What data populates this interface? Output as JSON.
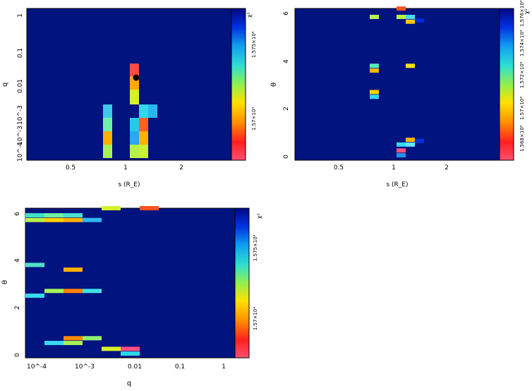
{
  "chart_data": [
    {
      "type": "heatmap",
      "title": "",
      "xlabel": "s (R_E)",
      "ylabel": "q",
      "x_ticks": [
        "0.5",
        "1",
        "2"
      ],
      "y_ticks": [
        "1",
        "0.1",
        "0.01",
        "10^-3",
        "10^-3",
        "10^-4"
      ],
      "colorbar_label": "χ²",
      "colorbar_ticks": [
        "1.575×10⁴",
        "1.57×10⁴"
      ],
      "background_color": "#00137f",
      "best_fit_marker": {
        "s": 1.1,
        "q": 0.015
      },
      "cells": [
        {
          "s_bin": 0.8,
          "q_bin": "3e-3",
          "color": "#3fc9e8"
        },
        {
          "s_bin": 0.8,
          "q_bin": "1e-3",
          "color": "#70f0a8"
        },
        {
          "s_bin": 0.8,
          "q_bin": "6e-4",
          "color": "#ffb000"
        },
        {
          "s_bin": 0.8,
          "q_bin": "3e-4",
          "color": "#b8f050"
        },
        {
          "s_bin": 0.8,
          "q_bin": "1e-4",
          "color": "#a8f058"
        },
        {
          "s_bin": 1.1,
          "q_bin": "0.03",
          "color": "#ff4a4a"
        },
        {
          "s_bin": 1.1,
          "q_bin": "0.01",
          "color": "#ffa800"
        },
        {
          "s_bin": 1.1,
          "q_bin": "5e-3",
          "color": "#d8f028"
        },
        {
          "s_bin": 1.1,
          "q_bin": "1e-3",
          "color": "#28c8e8"
        },
        {
          "s_bin": 1.1,
          "q_bin": "6e-4",
          "color": "#28a8f0"
        },
        {
          "s_bin": 1.1,
          "q_bin": "3e-4",
          "color": "#a8f058"
        },
        {
          "s_bin": 1.1,
          "q_bin": "1e-4",
          "color": "#b8f048"
        },
        {
          "s_bin": 1.3,
          "q_bin": "3e-3",
          "color": "#30d8e8"
        },
        {
          "s_bin": 1.3,
          "q_bin": "1e-3",
          "color": "#ff6020"
        },
        {
          "s_bin": 1.3,
          "q_bin": "6e-4",
          "color": "#ffb000"
        },
        {
          "s_bin": 1.3,
          "q_bin": "3e-4",
          "color": "#c8f038"
        },
        {
          "s_bin": 1.5,
          "q_bin": "3e-3",
          "color": "#28b8f0"
        }
      ]
    },
    {
      "type": "heatmap",
      "title": "",
      "xlabel": "s (R_E)",
      "ylabel": "θ",
      "x_ticks": [
        "0.5",
        "1",
        "2"
      ],
      "y_ticks": [
        "0",
        "2",
        "4",
        "6"
      ],
      "colorbar_label": "χ²",
      "colorbar_ticks": [
        "1.568×10⁴",
        "1.57×10⁴",
        "1.572×10⁴",
        "1.574×10⁴",
        "1.576×10⁴"
      ],
      "background_color": "#00137f",
      "cells": [
        {
          "s_bin": 0.8,
          "theta": 5.8,
          "color": "#b8f048"
        },
        {
          "s_bin": 0.8,
          "theta": 3.75,
          "color": "#50f0c0"
        },
        {
          "s_bin": 0.8,
          "theta": 3.55,
          "color": "#ffb000"
        },
        {
          "s_bin": 0.8,
          "theta": 2.65,
          "color": "#ffd000"
        },
        {
          "s_bin": 0.8,
          "theta": 2.45,
          "color": "#30d8f0"
        },
        {
          "s_bin": 1.1,
          "theta": 6.15,
          "color": "#ff5020"
        },
        {
          "s_bin": 1.1,
          "theta": 5.8,
          "color": "#b8f048"
        },
        {
          "s_bin": 1.1,
          "theta": 0.45,
          "color": "#38d8f0"
        },
        {
          "s_bin": 1.1,
          "theta": 0.2,
          "color": "#ff5080"
        },
        {
          "s_bin": 1.1,
          "theta": 0.0,
          "color": "#2890e8"
        },
        {
          "s_bin": 1.3,
          "theta": 5.8,
          "color": "#48d8f8"
        },
        {
          "s_bin": 1.3,
          "theta": 5.6,
          "color": "#ffc800"
        },
        {
          "s_bin": 1.3,
          "theta": 3.75,
          "color": "#ffe000"
        },
        {
          "s_bin": 1.3,
          "theta": 0.65,
          "color": "#ffb000"
        },
        {
          "s_bin": 1.3,
          "theta": 0.45,
          "color": "#60e8f8"
        },
        {
          "s_bin": 1.5,
          "theta": 5.65,
          "color": "#0028e0"
        },
        {
          "s_bin": 1.5,
          "theta": 0.6,
          "color": "#0030d8"
        }
      ]
    },
    {
      "type": "heatmap",
      "title": "",
      "xlabel": "q",
      "ylabel": "θ",
      "x_ticks": [
        "10^-4",
        "10^-3",
        "0.01",
        "0.1",
        "1"
      ],
      "y_ticks": [
        "0",
        "2",
        "4",
        "6"
      ],
      "colorbar_label": "χ²",
      "colorbar_ticks": [
        "1.575×10⁴",
        "1.57×10⁴"
      ],
      "background_color": "#00137f",
      "cells": [
        {
          "q_bin": "6e-5",
          "theta": 5.65,
          "color": "#b8f048"
        },
        {
          "q_bin": "1.5e-4",
          "theta": 5.65,
          "color": "#ffd000"
        },
        {
          "q_bin": "4e-4",
          "theta": 5.65,
          "color": "#ffb000"
        },
        {
          "q_bin": "1e-3",
          "theta": 5.65,
          "color": "#30b8f0"
        },
        {
          "q_bin": "6e-5",
          "theta": 5.85,
          "color": "#40e0c8"
        },
        {
          "q_bin": "1.5e-4",
          "theta": 5.85,
          "color": "#70f0a0"
        },
        {
          "q_bin": "4e-4",
          "theta": 5.85,
          "color": "#48e0d0"
        },
        {
          "q_bin": "6e-5",
          "theta": 3.75,
          "color": "#50e0c8"
        },
        {
          "q_bin": "4e-4",
          "theta": 3.55,
          "color": "#ffb000"
        },
        {
          "q_bin": "6e-5",
          "theta": 2.45,
          "color": "#38d8f0"
        },
        {
          "q_bin": "1.5e-4",
          "theta": 2.65,
          "color": "#a8f058"
        },
        {
          "q_bin": "4e-4",
          "theta": 2.65,
          "color": "#ff8000"
        },
        {
          "q_bin": "1e-3",
          "theta": 2.65,
          "color": "#40e0e8"
        },
        {
          "q_bin": "1.5e-4",
          "theta": 0.45,
          "color": "#38d8f0"
        },
        {
          "q_bin": "4e-4",
          "theta": 0.45,
          "color": "#a8f058"
        },
        {
          "q_bin": "4e-4",
          "theta": 0.65,
          "color": "#ff8800"
        },
        {
          "q_bin": "1e-3",
          "theta": 0.65,
          "color": "#90f070"
        },
        {
          "q_bin": "5e-3",
          "theta": 0.2,
          "color": "#d8f028"
        },
        {
          "q_bin": "0.01",
          "theta": 0.2,
          "color": "#ff5080"
        },
        {
          "q_bin": "0.01",
          "theta": 0.0,
          "color": "#28d8e8"
        },
        {
          "q_bin": "5e-3",
          "theta": 6.15,
          "color": "#d8f028"
        },
        {
          "q_bin": "0.03",
          "theta": 6.15,
          "color": "#ff5020"
        }
      ]
    }
  ]
}
